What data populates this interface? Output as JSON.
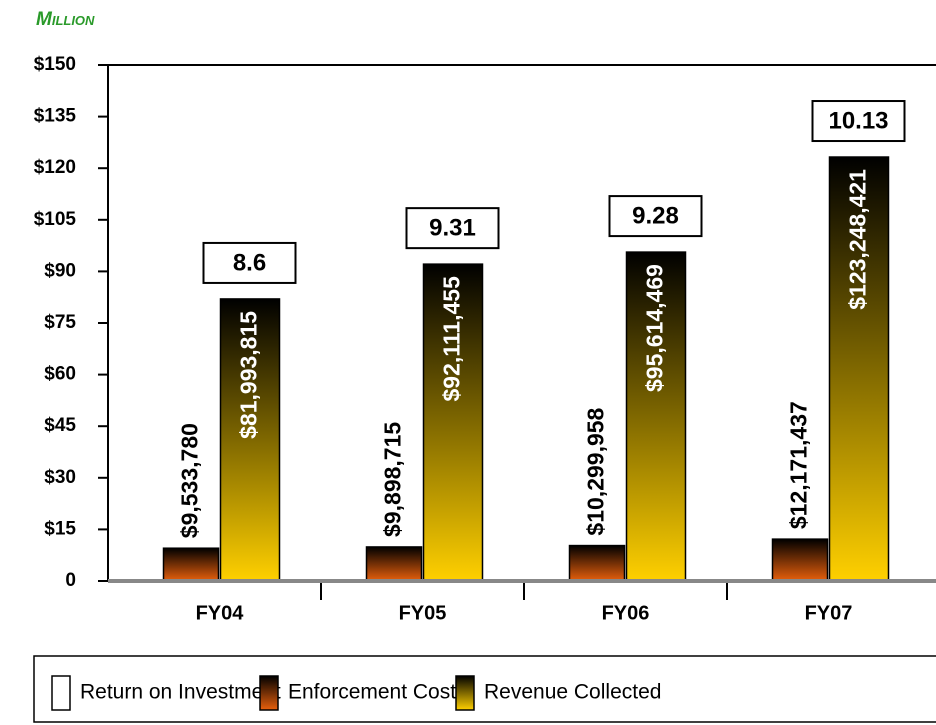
{
  "chart_data": {
    "type": "bar",
    "title": "Million",
    "categories": [
      "FY04",
      "FY05",
      "FY06",
      "FY07"
    ],
    "series": [
      {
        "name": "Return on Investment",
        "color": "#ffffff",
        "values": [
          8.6,
          9.31,
          9.28,
          10.13
        ]
      },
      {
        "name": "Enforcement Cost",
        "color": "#e8600c",
        "values": [
          9.53378,
          9.898715,
          10.299958,
          12.171437
        ],
        "value_labels": [
          "$9,533,780",
          "$9,898,715",
          "$10,299,958",
          "$12,171,437"
        ]
      },
      {
        "name": "Revenue Collected",
        "color": "#ffd000",
        "values": [
          81.993815,
          92.111455,
          95.614469,
          123.248421
        ],
        "value_labels": [
          "$81,993,815",
          "$92,111,455",
          "$95,614,469",
          "$123,248,421"
        ]
      }
    ],
    "ylim": [
      0,
      150
    ],
    "yticks": [
      0,
      {
        "value": 15,
        "label": "$15"
      },
      {
        "value": 30,
        "label": "$30"
      },
      {
        "value": 45,
        "label": "$45"
      },
      {
        "value": 60,
        "label": "$60"
      },
      {
        "value": 75,
        "label": "$75"
      },
      {
        "value": 90,
        "label": "$90"
      },
      {
        "value": 105,
        "label": "$105"
      },
      {
        "value": 120,
        "label": "$120"
      },
      {
        "value": 135,
        "label": "$135"
      },
      {
        "value": 150,
        "label": "$150"
      }
    ],
    "legend": "bottom"
  }
}
